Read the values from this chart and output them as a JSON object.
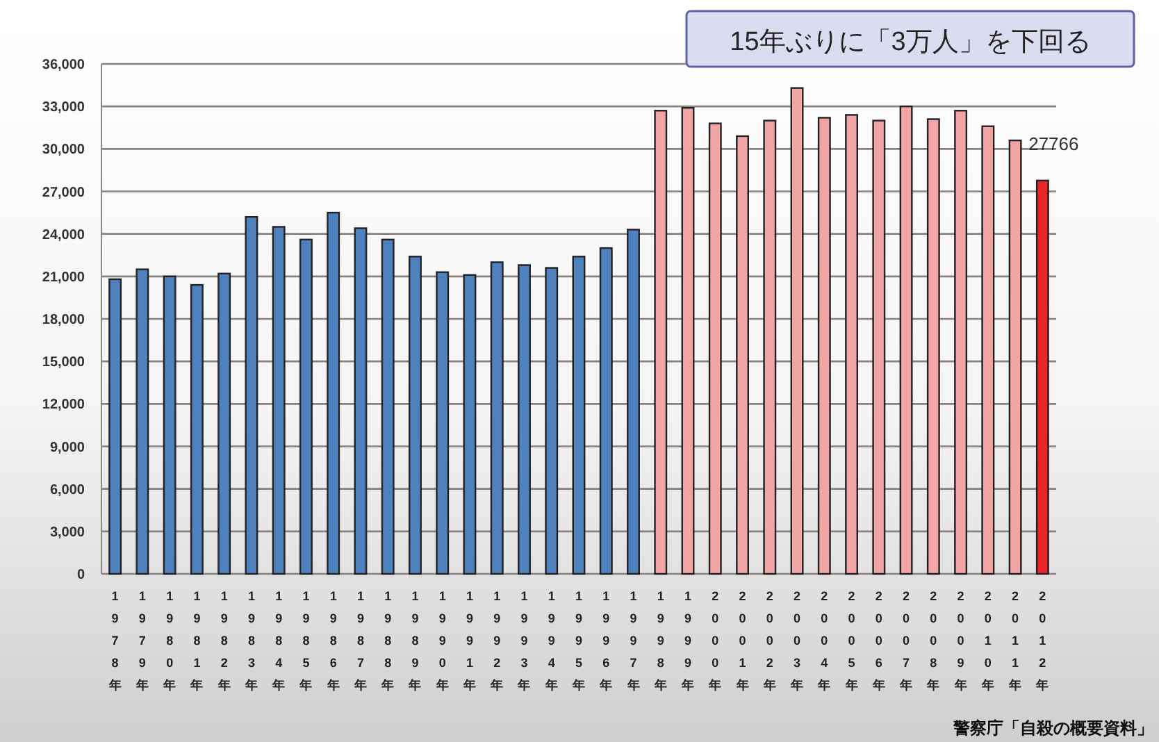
{
  "chart_data": {
    "type": "bar",
    "categories": [
      "1978年",
      "1979年",
      "1980年",
      "1981年",
      "1982年",
      "1983年",
      "1984年",
      "1985年",
      "1986年",
      "1987年",
      "1988年",
      "1989年",
      "1990年",
      "1991年",
      "1992年",
      "1993年",
      "1994年",
      "1995年",
      "1996年",
      "1997年",
      "1998年",
      "1999年",
      "2000年",
      "2001年",
      "2002年",
      "2003年",
      "2004年",
      "2005年",
      "2006年",
      "2007年",
      "2008年",
      "2009年",
      "2010年",
      "2011年",
      "2012年"
    ],
    "values": [
      20800,
      21500,
      21000,
      20400,
      21200,
      25200,
      24500,
      23600,
      25500,
      24400,
      23600,
      22400,
      21300,
      21100,
      22000,
      21800,
      21600,
      22400,
      23000,
      24300,
      32700,
      32900,
      31800,
      30900,
      32000,
      34300,
      32200,
      32400,
      32000,
      33000,
      32100,
      32700,
      31600,
      30600,
      27766
    ],
    "colors": [
      "#4f81bd",
      "#4f81bd",
      "#4f81bd",
      "#4f81bd",
      "#4f81bd",
      "#4f81bd",
      "#4f81bd",
      "#4f81bd",
      "#4f81bd",
      "#4f81bd",
      "#4f81bd",
      "#4f81bd",
      "#4f81bd",
      "#4f81bd",
      "#4f81bd",
      "#4f81bd",
      "#4f81bd",
      "#4f81bd",
      "#4f81bd",
      "#4f81bd",
      "#f2a5a5",
      "#f2a5a5",
      "#f2a5a5",
      "#f2a5a5",
      "#f2a5a5",
      "#f2a5a5",
      "#f2a5a5",
      "#f2a5a5",
      "#f2a5a5",
      "#f2a5a5",
      "#f2a5a5",
      "#f2a5a5",
      "#f2a5a5",
      "#f2a5a5",
      "#e8262a"
    ],
    "value_labels": [
      null,
      null,
      null,
      null,
      null,
      null,
      null,
      null,
      null,
      null,
      null,
      null,
      null,
      null,
      null,
      null,
      null,
      null,
      null,
      null,
      null,
      null,
      null,
      null,
      null,
      null,
      null,
      null,
      null,
      null,
      null,
      null,
      null,
      null,
      "27766"
    ],
    "ylim": [
      0,
      36000
    ],
    "yticks": [
      {
        "value": 0,
        "label": "0"
      },
      {
        "value": 3000,
        "label": "3,000"
      },
      {
        "value": 6000,
        "label": "6,000"
      },
      {
        "value": 9000,
        "label": "9,000"
      },
      {
        "value": 12000,
        "label": "12,000"
      },
      {
        "value": 15000,
        "label": "15,000"
      },
      {
        "value": 18000,
        "label": "18,000"
      },
      {
        "value": 21000,
        "label": "21,000"
      },
      {
        "value": 24000,
        "label": "24,000"
      },
      {
        "value": 27000,
        "label": "27,000"
      },
      {
        "value": 30000,
        "label": "30,000"
      },
      {
        "value": 33000,
        "label": "33,000"
      },
      {
        "value": 36000,
        "label": "36,000"
      }
    ],
    "grid": "y",
    "annotations": [
      "15年ぶりに「3万人」を下回る",
      "警察庁「自殺の概要資料」"
    ]
  }
}
